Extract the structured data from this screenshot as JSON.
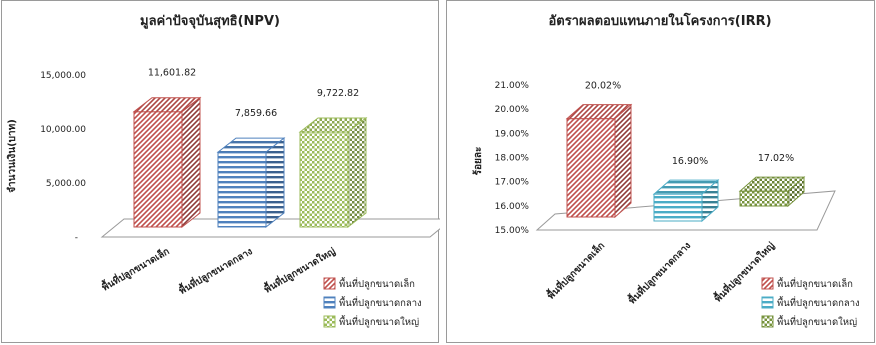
{
  "chart_data": [
    {
      "type": "bar",
      "title": "มูลค่าปัจจุบันสุทธิ(NPV)",
      "ylabel": "จำนวนเงิน(บาท)",
      "xlabel": "",
      "categories": [
        "พื้นที่ปลูกขนาดเล็ก",
        "พื้นที่ปลูกขนาดกลาง",
        "พื้นที่ปลูกขนาดใหญ่"
      ],
      "values": [
        11601.82,
        7859.66,
        9722.82
      ],
      "data_labels": [
        "11,601.82",
        "7,859.66",
        "9,722.82"
      ],
      "yticks": [
        "-",
        "5,000.00",
        "10,000.00",
        "15,000.00"
      ],
      "ylim": [
        0,
        15000
      ],
      "legend": [
        "พื้นที่ปลูกขนาดเล็ก",
        "พื้นที่ปลูกขนาดกลาง",
        "พื้นที่ปลูกขนาดใหญ่"
      ],
      "legend_position": "bottom-right",
      "grid": false,
      "colors": [
        "#c0504d",
        "#4f81bd",
        "#9bbb59"
      ]
    },
    {
      "type": "bar",
      "title": "อัตราผลตอบแทนภายในโครงการ(IRR)",
      "ylabel": "ร้อยละ",
      "xlabel": "",
      "categories": [
        "พื้นที่ปลูกขนาดเล็ก",
        "พื้นที่ปลูกขนาดกลาง",
        "พื้นที่ปลูกขนาดใหญ่"
      ],
      "values": [
        20.02,
        16.9,
        17.02
      ],
      "data_labels": [
        "20.02%",
        "16.90%",
        "17.02%"
      ],
      "yticks": [
        "15.00%",
        "16.00%",
        "17.00%",
        "18.00%",
        "19.00%",
        "20.00%",
        "21.00%"
      ],
      "ylim": [
        15,
        21
      ],
      "legend": [
        "พื้นที่ปลูกขนาดเล็ก",
        "พื้นที่ปลูกขนาดกลาง",
        "พื้นที่ปลูกขนาดใหญ่"
      ],
      "legend_position": "bottom-right",
      "grid": false,
      "colors": [
        "#c0504d",
        "#4bacc6",
        "#77933c"
      ]
    }
  ]
}
